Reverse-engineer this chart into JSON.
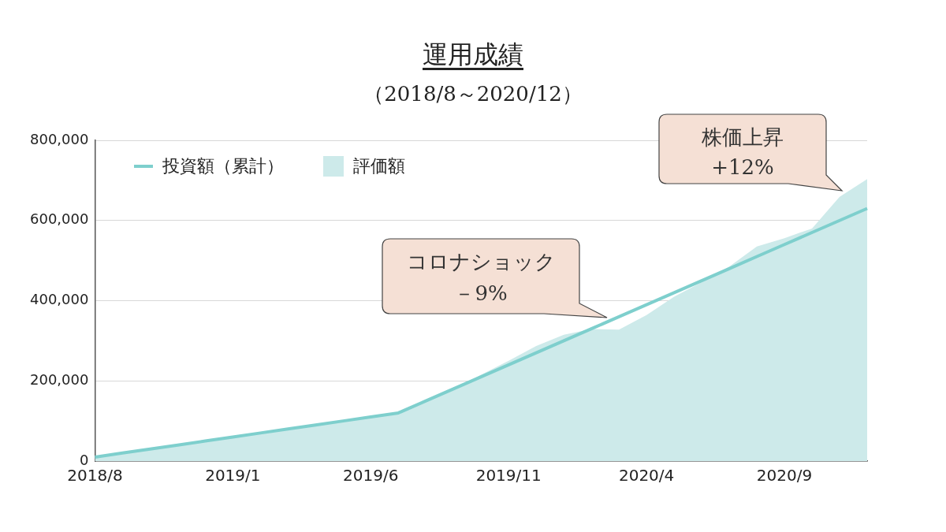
{
  "chart_data": {
    "type": "line",
    "title": "運用成績",
    "subtitle": "（2018/8～2020/12）",
    "categories": [
      "2018/8",
      null,
      null,
      null,
      null,
      "2019/1",
      null,
      null,
      null,
      null,
      "2019/6",
      null,
      null,
      null,
      null,
      "2019/11",
      null,
      null,
      null,
      null,
      "2020/4",
      null,
      null,
      null,
      null,
      "2020/9",
      null,
      null,
      null
    ],
    "series": [
      {
        "name": "投資額（累計）",
        "type": "line",
        "color": "#7ecfcd",
        "values": [
          10000,
          20000,
          30000,
          40000,
          50000,
          60000,
          70000,
          80000,
          90000,
          100000,
          110000,
          120000,
          150000,
          180000,
          210000,
          240000,
          270000,
          300000,
          330000,
          360000,
          390000,
          420000,
          450000,
          480000,
          510000,
          540000,
          570000,
          600000,
          630000
        ]
      },
      {
        "name": "評価額",
        "type": "area",
        "color": "#cdeaea",
        "values": [
          10000,
          20000,
          30000,
          40000,
          50000,
          60000,
          70000,
          80000,
          90000,
          100000,
          110000,
          120000,
          150000,
          180000,
          215000,
          250000,
          287000,
          315000,
          329000,
          328000,
          364000,
          410000,
          446000,
          485000,
          535000,
          556000,
          580000,
          659000,
          703000
        ]
      }
    ],
    "ylim": [
      0,
      800000
    ],
    "yticks": [
      {
        "value": 0,
        "label": "0"
      },
      {
        "value": 200000,
        "label": "200,000"
      },
      {
        "value": 400000,
        "label": "400,000"
      },
      {
        "value": 600000,
        "label": "600,000"
      },
      {
        "value": 800000,
        "label": "800,000"
      }
    ],
    "grid": "y",
    "legend": "top left",
    "marker": "none",
    "line_style": "solid",
    "annotations": [
      "コロナショック",
      "－9%",
      "株価上昇",
      "+12%"
    ]
  }
}
